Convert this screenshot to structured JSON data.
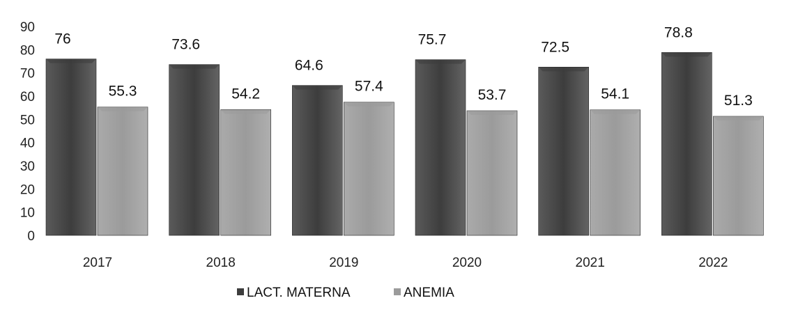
{
  "chart_data": {
    "type": "bar",
    "title": "",
    "xlabel": "",
    "ylabel": "",
    "categories": [
      "2017",
      "2018",
      "2019",
      "2020",
      "2021",
      "2022"
    ],
    "series": [
      {
        "name": "LACT. MATERNA",
        "values": [
          76,
          73.6,
          64.6,
          75.7,
          72.5,
          78.8
        ],
        "color": "#3d3d3d"
      },
      {
        "name": "ANEMIA",
        "values": [
          55.3,
          54.2,
          57.4,
          53.7,
          54.1,
          51.3
        ],
        "color": "#9b9b9b"
      }
    ],
    "value_labels": [
      [
        "76",
        "73.6",
        "64.6",
        "75.7",
        "72.5",
        "78.8"
      ],
      [
        "55.3",
        "54.2",
        "57.4",
        "53.7",
        "54.1",
        "51.3"
      ]
    ],
    "ylim": [
      0,
      90
    ],
    "yticks": [
      0,
      10,
      20,
      30,
      40,
      50,
      60,
      70,
      80,
      90
    ],
    "grid": false,
    "legend_position": "bottom-center"
  }
}
